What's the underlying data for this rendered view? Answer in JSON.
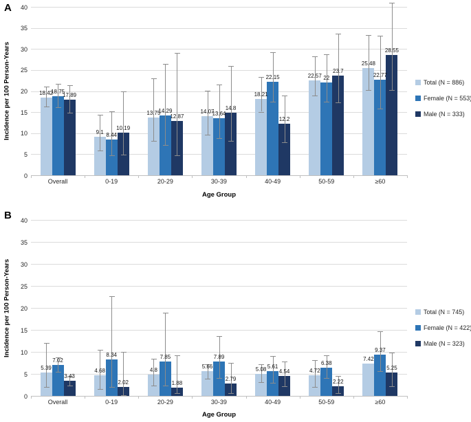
{
  "figure_name": "Incidence per 100 Person-Years by Age Group, panels A and B",
  "colors": {
    "background": "#FFFFFF",
    "bar_total": "#B4CCE4",
    "bar_female": "#2E75B6",
    "bar_male": "#1F3864",
    "error_bar": "#8C8C8C",
    "gridline": "#DBDBDB",
    "axis_line": "#BFBFBF",
    "text": "#262626"
  },
  "chart_data": [
    {
      "panel_label": "A",
      "type": "bar",
      "categories": [
        "Overall",
        "0-19",
        "20-29",
        "30-39",
        "40-49",
        "50-59",
        "≥60"
      ],
      "xlabel": "Age Group",
      "ylabel": "Incidence per 100 Person-Years",
      "ylim": [
        0,
        40
      ],
      "ytick_step": 5,
      "grid": "horizontal",
      "legend_position": "right",
      "series": [
        {
          "name": "Total (N = 886)",
          "color": "#B4CCE4",
          "values": [
            18.42,
            9.1,
            13.75,
            14.07,
            18.21,
            22.57,
            25.48
          ],
          "ci_low": [
            16.3,
            5.9,
            8.1,
            9.6,
            15.1,
            18.9,
            20.3
          ],
          "ci_high": [
            21.1,
            14.4,
            23.1,
            20.1,
            23.3,
            28.3,
            33.3
          ]
        },
        {
          "name": "Female (N = 553)",
          "color": "#2E75B6",
          "values": [
            18.75,
            8.44,
            14.29,
            13.64,
            22.15,
            22,
            22.77
          ],
          "ci_low": [
            16.1,
            4.7,
            7.2,
            8.8,
            17.4,
            17.5,
            15.9
          ],
          "ci_high": [
            21.8,
            15.2,
            26.5,
            21.5,
            29.2,
            28.8,
            33.2
          ]
        },
        {
          "name": "Male (N = 333)",
          "color": "#1F3864",
          "values": [
            17.89,
            10.19,
            12.87,
            14.8,
            12.2,
            23.7,
            28.55
          ],
          "ci_low": [
            14.8,
            4.9,
            4.8,
            8.2,
            7.9,
            17.3,
            20.2
          ],
          "ci_high": [
            21.4,
            19.9,
            29,
            26,
            18.9,
            33.7,
            41
          ]
        }
      ]
    },
    {
      "panel_label": "B",
      "type": "bar",
      "categories": [
        "Overall",
        "0-19",
        "20-29",
        "30-39",
        "40-49",
        "50-59",
        "≥60"
      ],
      "xlabel": "Age Group",
      "ylabel": "Incidence per 100 Person-Years",
      "ylim": [
        0,
        40
      ],
      "ytick_step": 5,
      "grid": "horizontal",
      "legend_position": "right",
      "series": [
        {
          "name": "Total (N = 745)",
          "color": "#B4CCE4",
          "values": [
            5.39,
            4.68,
            4.8,
            5.66,
            5.08,
            4.72,
            7.42
          ],
          "ci_low": [
            2.1,
            1.6,
            2.3,
            3.9,
            3.1,
            2.0,
            null
          ],
          "ci_high": [
            12.0,
            10.5,
            8.4,
            7.2,
            7.2,
            8.2,
            null
          ]
        },
        {
          "name": "Female (N = 422)",
          "color": "#2E75B6",
          "values": [
            7.02,
            8.34,
            7.85,
            7.89,
            5.61,
            6.38,
            9.37
          ],
          "ci_low": [
            5.5,
            2.1,
            2.4,
            4.1,
            3.0,
            4.1,
            5.6
          ],
          "ci_high": [
            8.7,
            22.6,
            18.9,
            13.6,
            9.0,
            9.3,
            14.7
          ]
        },
        {
          "name": "Male (N = 323)",
          "color": "#1F3864",
          "values": [
            3.43,
            2.02,
            1.88,
            2.79,
            4.54,
            2.22,
            5.25
          ],
          "ci_low": [
            2.3,
            0.2,
            0.7,
            0.6,
            2.2,
            0.7,
            2.2
          ],
          "ci_high": [
            4.6,
            10.0,
            9.3,
            7.5,
            7.8,
            4.6,
            9.9
          ]
        }
      ]
    }
  ]
}
